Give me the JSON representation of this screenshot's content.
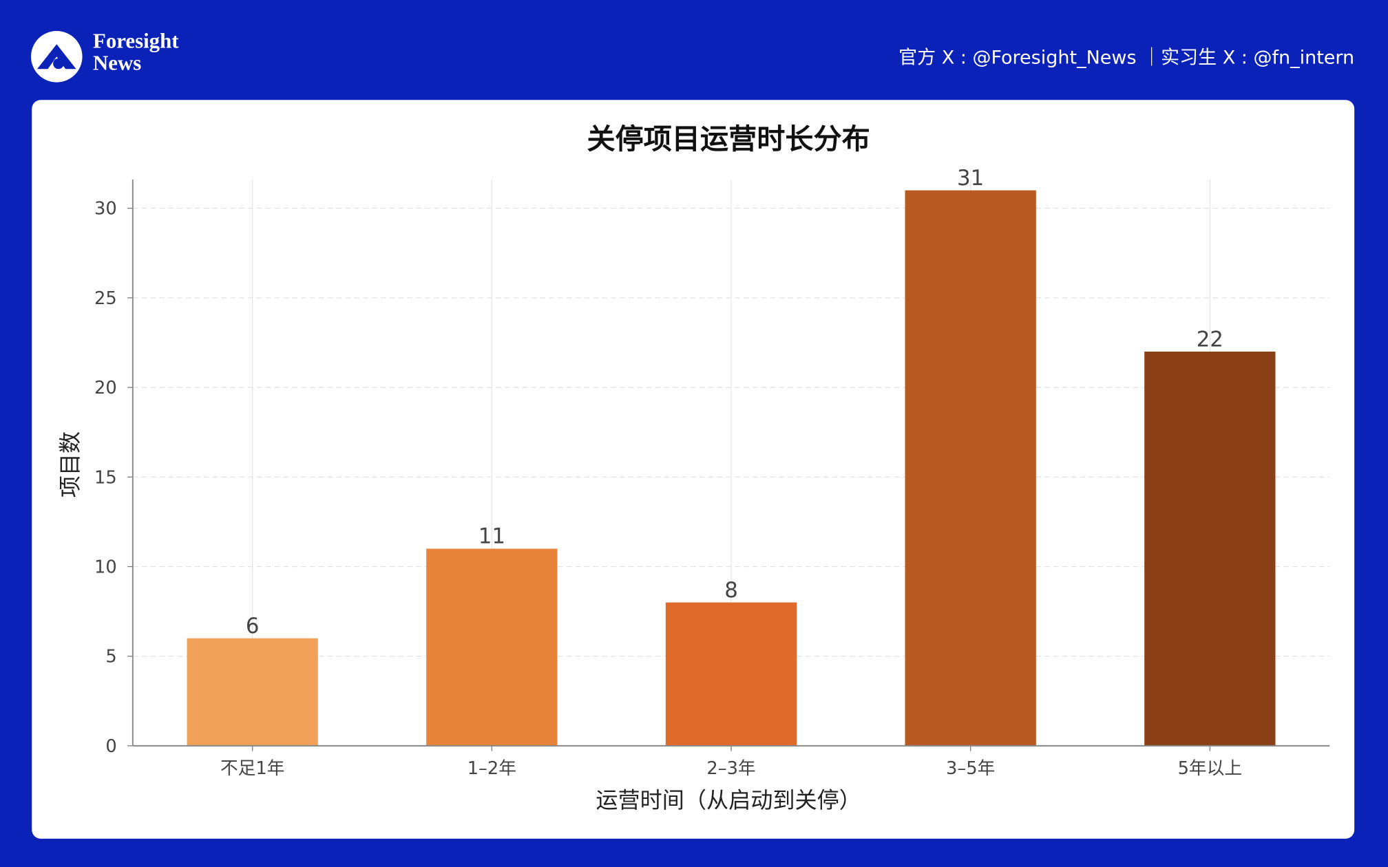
{
  "header": {
    "brand": [
      "Foresight",
      "News"
    ],
    "handles": "官方 X : @Foresight_News ｜实习生 X : @fn_intern"
  },
  "chart_data": {
    "type": "bar",
    "title": "关停项目运营时长分布",
    "x_label": "运营时间（从启动到关停）",
    "y_label": "项目数",
    "categories": [
      "不足1年",
      "1–2年",
      "2–3年",
      "3–5年",
      "5年以上"
    ],
    "values": [
      6,
      11,
      8,
      31,
      22
    ],
    "colors": [
      "#f0a057",
      "#e8843a",
      "#df6a2a",
      "#b85a22",
      "#8b4018"
    ],
    "ylim": [
      0,
      31.6
    ],
    "yticks": [
      0,
      5,
      10,
      15,
      20,
      25,
      30
    ],
    "grid": true
  }
}
